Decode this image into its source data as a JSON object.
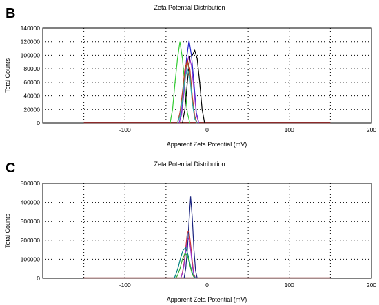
{
  "chart_data": [
    {
      "panel": "B",
      "type": "line",
      "title": "Zeta Potential Distribution",
      "xlabel": "Apparent Zeta Potential (mV)",
      "ylabel": "Total Counts",
      "xlim": [
        -200,
        200
      ],
      "ylim": [
        0,
        140000
      ],
      "xticks": [
        -100,
        0,
        100,
        200
      ],
      "yticks": [
        0,
        20000,
        40000,
        60000,
        80000,
        100000,
        120000,
        140000
      ],
      "grid": true,
      "baseline_xrange": [
        -150,
        150
      ],
      "series": [
        {
          "color": "#33cc33",
          "x": [
            -45,
            -42,
            -39,
            -36,
            -33,
            -30,
            -27,
            -24,
            -21
          ],
          "y": [
            0,
            20000,
            60000,
            95000,
            120000,
            95000,
            55000,
            15000,
            0
          ]
        },
        {
          "color": "#2222cc",
          "x": [
            -34,
            -31,
            -28,
            -25,
            -22,
            -19,
            -16,
            -13,
            -10
          ],
          "y": [
            0,
            15000,
            50000,
            95000,
            122000,
            100000,
            60000,
            15000,
            0
          ]
        },
        {
          "color": "#9933cc",
          "x": [
            -34,
            -31,
            -28,
            -25,
            -22,
            -19,
            -16,
            -13,
            -10
          ],
          "y": [
            0,
            12000,
            45000,
            85000,
            100000,
            85000,
            50000,
            12000,
            0
          ]
        },
        {
          "color": "#000000",
          "x": [
            -30,
            -27,
            -24,
            -21,
            -18,
            -15,
            -12,
            -9,
            -6,
            -3
          ],
          "y": [
            0,
            20000,
            60000,
            98000,
            100000,
            107000,
            95000,
            60000,
            20000,
            0
          ]
        },
        {
          "color": "#cc2222",
          "x": [
            -36,
            -33,
            -30,
            -27,
            -24,
            -21,
            -18,
            -15,
            -12
          ],
          "y": [
            0,
            15000,
            45000,
            80000,
            93000,
            80000,
            40000,
            10000,
            0
          ]
        },
        {
          "color": "#996633",
          "x": [
            -36,
            -33,
            -30,
            -27,
            -24,
            -21,
            -18,
            -15,
            -12
          ],
          "y": [
            0,
            12000,
            40000,
            75000,
            90000,
            75000,
            35000,
            8000,
            0
          ]
        },
        {
          "color": "#33aaaa",
          "x": [
            -36,
            -33,
            -30,
            -27,
            -24,
            -21,
            -18,
            -15,
            -12
          ],
          "y": [
            0,
            10000,
            35000,
            65000,
            80000,
            68000,
            30000,
            6000,
            0
          ]
        }
      ]
    },
    {
      "panel": "C",
      "type": "line",
      "title": "Zeta Potential Distribution",
      "xlabel": "Apparent Zeta Potential (mV)",
      "ylabel": "Total Counts",
      "xlim": [
        -200,
        200
      ],
      "ylim": [
        0,
        500000
      ],
      "xticks": [
        -100,
        0,
        100,
        200
      ],
      "yticks": [
        0,
        100000,
        200000,
        300000,
        400000,
        500000
      ],
      "grid": true,
      "baseline_xrange": [
        -150,
        150
      ],
      "series": [
        {
          "color": "#1a237e",
          "x": [
            -28,
            -26,
            -24,
            -22,
            -20,
            -18,
            -16,
            -14,
            -12
          ],
          "y": [
            0,
            50000,
            150000,
            300000,
            430000,
            320000,
            150000,
            40000,
            0
          ]
        },
        {
          "color": "#cc3333",
          "x": [
            -32,
            -30,
            -28,
            -26,
            -24,
            -22,
            -20,
            -18,
            -16,
            -14
          ],
          "y": [
            0,
            30000,
            80000,
            160000,
            240000,
            250000,
            180000,
            90000,
            20000,
            0
          ]
        },
        {
          "color": "#9933cc",
          "x": [
            -32,
            -30,
            -28,
            -26,
            -24,
            -22,
            -20,
            -18,
            -16,
            -14
          ],
          "y": [
            0,
            25000,
            70000,
            140000,
            200000,
            210000,
            150000,
            70000,
            15000,
            0
          ]
        },
        {
          "color": "#008080",
          "x": [
            -40,
            -38,
            -35,
            -32,
            -29,
            -26,
            -23,
            -20,
            -17,
            -14
          ],
          "y": [
            0,
            20000,
            60000,
            110000,
            150000,
            160000,
            120000,
            60000,
            15000,
            0
          ]
        },
        {
          "color": "#33aa33",
          "x": [
            -38,
            -36,
            -33,
            -30,
            -27,
            -24,
            -21,
            -18,
            -15
          ],
          "y": [
            0,
            15000,
            50000,
            100000,
            130000,
            120000,
            70000,
            20000,
            0
          ]
        }
      ]
    }
  ]
}
